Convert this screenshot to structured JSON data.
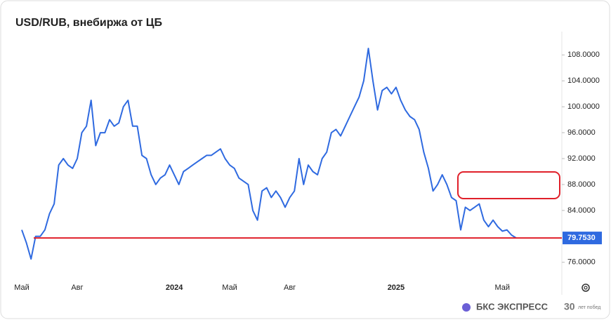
{
  "chart_data": {
    "type": "line",
    "title": "USD/RUB, внебиржа от ЦБ",
    "series": [
      {
        "name": "USD/RUB",
        "color": "#2f6ae0",
        "values": [
          81,
          79,
          76.5,
          80,
          80,
          81,
          83.5,
          85,
          91,
          92,
          91,
          90.5,
          92,
          96,
          97,
          101,
          94,
          96,
          96,
          98,
          97,
          97.5,
          100,
          101,
          97,
          97,
          92.5,
          92,
          89.5,
          88,
          89,
          89.5,
          91,
          89.5,
          88,
          90,
          90.5,
          91,
          91.5,
          92,
          92.5,
          92.5,
          93,
          93.5,
          92,
          91,
          90.5,
          89,
          88.5,
          88,
          84,
          82.5,
          87,
          87.5,
          86,
          87,
          86,
          84.5,
          86,
          87,
          92,
          88,
          91,
          90,
          89.5,
          92,
          93,
          96,
          96.5,
          95.5,
          97,
          98.5,
          100,
          101.5,
          104,
          109,
          104,
          99.5,
          102.5,
          103,
          102,
          103,
          101,
          99.5,
          98.5,
          98,
          96.5,
          93,
          90.5,
          87,
          88,
          89.5,
          88,
          86,
          85.5,
          81,
          84.5,
          84,
          84.5,
          85,
          82.5,
          81.5,
          82.5,
          81.5,
          80.8,
          81,
          80.2,
          79.753
        ],
        "value_labels": {
          "107": "79.7530"
        }
      }
    ],
    "ylim": [
      73.7,
      111.6
    ],
    "yticks": [
      {
        "value": 108,
        "label": "108.0000"
      },
      {
        "value": 104,
        "label": "104.0000"
      },
      {
        "value": 100,
        "label": "100.0000"
      },
      {
        "value": 96,
        "label": "96.0000"
      },
      {
        "value": 92,
        "label": "92.0000"
      },
      {
        "value": 88,
        "label": "88.0000"
      },
      {
        "value": 84,
        "label": "84.0000"
      },
      {
        "value": 76,
        "label": "76.0000"
      }
    ],
    "xlim": [
      0,
      107
    ],
    "xticks": [
      {
        "value": 0,
        "label": "Май"
      },
      {
        "value": 12,
        "label": "Авг"
      },
      {
        "value": 33,
        "label": "2024"
      },
      {
        "value": 45,
        "label": "Май"
      },
      {
        "value": 58,
        "label": "Авг"
      },
      {
        "value": 81,
        "label": "2025"
      },
      {
        "value": 104,
        "label": "Май"
      }
    ],
    "brand": "БКС ЭКСПРЕСС",
    "badge": "30",
    "badge_text": "лет побед"
  }
}
